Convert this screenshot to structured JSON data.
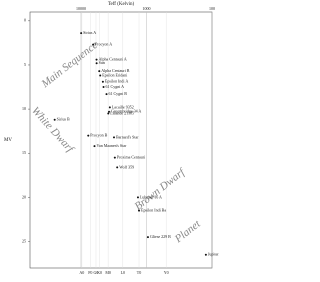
{
  "chart_data": {
    "type": "scatter",
    "x_label": "Teff (Kelvin)",
    "y_label": "MV",
    "x_scale": "log",
    "x_reversed": true,
    "y_reversed": true,
    "grid": true,
    "xlim": [
      60000,
      100
    ],
    "ylim": [
      -1,
      28
    ],
    "xticks": [
      10000,
      1000,
      100
    ],
    "spectral_ticks": [
      {
        "value": 9700,
        "label": "A0"
      },
      {
        "value": 7200,
        "label": "F0"
      },
      {
        "value": 5900,
        "label": "G0"
      },
      {
        "value": 5200,
        "label": "K0"
      },
      {
        "value": 3850,
        "label": "M0"
      },
      {
        "value": 2300,
        "label": "L0"
      },
      {
        "value": 1300,
        "label": "T0"
      },
      {
        "value": 500,
        "label": "Y0"
      }
    ],
    "yticks": [
      0,
      5,
      10,
      15,
      20,
      25
    ],
    "annotations": [
      "Main Sequence",
      "White Dwarf",
      "Brown Dwarf",
      "Planet"
    ],
    "series": [
      {
        "name": "Stars",
        "color": "#111",
        "labels": [
          "Sirius A",
          "Procyon A",
          "Alpha Centauri A",
          "Sun",
          "Alpha Centauri B",
          "Epsilon Eridani",
          "Epsilon Indi A",
          "61 Cygni A",
          "61 Cygni B",
          "Lacaille 9352",
          "Groombridge 34 A",
          "Lalande 21185",
          "Barnard's Star",
          "Proxima Centauri",
          "Wolf 359",
          "Sirius B",
          "Procyon B",
          "Van Maanen's Star",
          "Luhman 16 A",
          "Epsilon Indi Ba",
          "Gliese 229 B",
          "Jupiter"
        ],
        "x": [
          9940,
          6530,
          5790,
          5772,
          5260,
          5084,
          4630,
          4526,
          4077,
          3626,
          3730,
          3830,
          3134,
          3042,
          2800,
          25200,
          7740,
          6220,
          1350,
          1300,
          950,
          124
        ],
        "values": [
          1.4,
          2.7,
          4.4,
          4.8,
          5.7,
          6.2,
          6.9,
          7.5,
          8.3,
          9.8,
          10.3,
          10.5,
          13.2,
          15.5,
          16.6,
          11.2,
          13.0,
          14.2,
          20.0,
          21.5,
          24.5,
          26.5
        ]
      }
    ]
  }
}
